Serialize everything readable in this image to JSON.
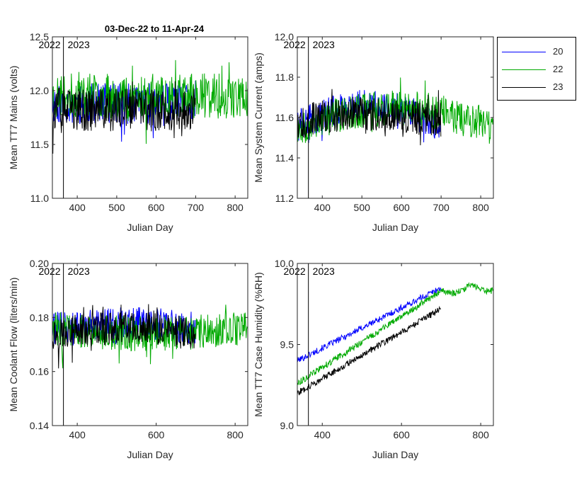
{
  "figure_title": "03-Dec-22 to 11-Apr-24",
  "legend": {
    "items": [
      {
        "label": "20",
        "color": "#0000ff"
      },
      {
        "label": "22",
        "color": "#00aa00"
      },
      {
        "label": "23",
        "color": "#000000"
      }
    ]
  },
  "chart_data": [
    {
      "type": "line",
      "xlabel": "Julian Day",
      "ylabel": "Mean TT7 Mains  (volts)",
      "xlim": [
        337,
        832
      ],
      "ylim": [
        11.0,
        12.5
      ],
      "xticks": [
        400,
        500,
        600,
        700,
        800
      ],
      "yticks": [
        11.0,
        11.5,
        12.0,
        12.5
      ],
      "ytick_labels": [
        "11.0",
        "11.5",
        "12.0",
        "12.5"
      ],
      "year_marker_x": 365,
      "year_labels": [
        "2022",
        "2023"
      ],
      "series": [
        {
          "name": "20",
          "color": "#0000ff",
          "x_range": [
            337,
            700
          ],
          "base": 11.88,
          "trend": 0.0,
          "noise": 0.38,
          "seed": 11
        },
        {
          "name": "22",
          "color": "#00aa00",
          "x_range": [
            337,
            832
          ],
          "base": 11.95,
          "trend": 0.0,
          "noise": 0.42,
          "seed": 23
        },
        {
          "name": "23",
          "color": "#000000",
          "x_range": [
            337,
            700
          ],
          "base": 11.82,
          "trend": 0.0,
          "noise": 0.4,
          "seed": 37
        }
      ]
    },
    {
      "type": "line",
      "xlabel": "Julian Day",
      "ylabel": "Mean System Current (amps)",
      "xlim": [
        337,
        832
      ],
      "ylim": [
        11.2,
        12.0
      ],
      "xticks": [
        400,
        500,
        600,
        700,
        800
      ],
      "yticks": [
        11.2,
        11.4,
        11.6,
        11.8,
        12.0
      ],
      "ytick_labels": [
        "11.2",
        "11.4",
        "11.6",
        "11.8",
        "12.0"
      ],
      "year_marker_x": 365,
      "year_labels": [
        "2022",
        "2023"
      ],
      "series": [
        {
          "name": "20",
          "color": "#0000ff",
          "x_range": [
            337,
            700
          ],
          "base": 11.56,
          "trend": 0.1,
          "noise": 0.16,
          "seed": 41
        },
        {
          "name": "22",
          "color": "#00aa00",
          "x_range": [
            337,
            832
          ],
          "base": 11.55,
          "trend": 0.1,
          "noise": 0.18,
          "seed": 53
        },
        {
          "name": "23",
          "color": "#000000",
          "x_range": [
            337,
            700
          ],
          "base": 11.58,
          "trend": 0.04,
          "noise": 0.17,
          "seed": 67
        }
      ]
    },
    {
      "type": "line",
      "xlabel": "Julian Day",
      "ylabel": "Mean Coolant Flow (liters/min)",
      "xlim": [
        337,
        832
      ],
      "ylim": [
        0.14,
        0.2
      ],
      "xticks": [
        400,
        600,
        800
      ],
      "yticks": [
        0.14,
        0.16,
        0.18,
        0.2
      ],
      "ytick_labels": [
        "0.14",
        "0.16",
        "0.18",
        "0.20"
      ],
      "year_marker_x": 365,
      "year_labels": [
        "2022",
        "2023"
      ],
      "series": [
        {
          "name": "20",
          "color": "#0000ff",
          "x_range": [
            337,
            700
          ],
          "base": 0.176,
          "trend": 0.002,
          "noise": 0.012,
          "seed": 71
        },
        {
          "name": "22",
          "color": "#00aa00",
          "x_range": [
            337,
            832
          ],
          "base": 0.176,
          "trend": -0.002,
          "noise": 0.013,
          "seed": 83
        },
        {
          "name": "23",
          "color": "#000000",
          "x_range": [
            337,
            700
          ],
          "base": 0.174,
          "trend": 0.002,
          "noise": 0.012,
          "seed": 97
        }
      ]
    },
    {
      "type": "line",
      "xlabel": "Julian Day",
      "ylabel": "Mean TT7 Case Humidity (%RH)",
      "xlim": [
        337,
        832
      ],
      "ylim": [
        9.0,
        10.0
      ],
      "xticks": [
        400,
        600,
        800
      ],
      "yticks": [
        9.0,
        9.5,
        10.0
      ],
      "ytick_labels": [
        "9.0",
        "9.5",
        "10.0"
      ],
      "year_marker_x": 365,
      "year_labels": [
        "2022",
        "2023"
      ],
      "series": [
        {
          "name": "20",
          "color": "#0000ff",
          "x_range": [
            337,
            700
          ],
          "start": 9.4,
          "end": 9.85,
          "noise": 0.04,
          "seed": 101
        },
        {
          "name": "22",
          "color": "#00aa00",
          "x_range": [
            337,
            832
          ],
          "start": 9.26,
          "end": 9.85,
          "noise": 0.04,
          "seed": 113,
          "knee_x": 700,
          "knee_y": 9.83
        },
        {
          "name": "23",
          "color": "#000000",
          "x_range": [
            337,
            700
          ],
          "start": 9.2,
          "end": 9.72,
          "noise": 0.04,
          "seed": 127
        }
      ]
    }
  ]
}
